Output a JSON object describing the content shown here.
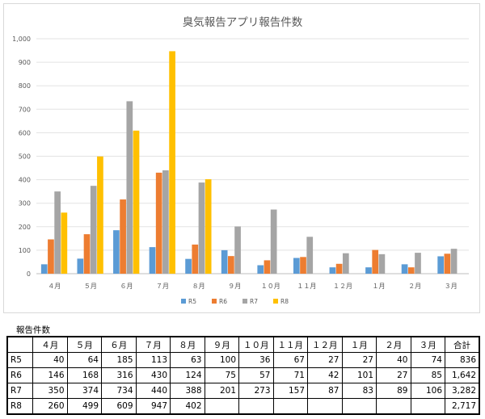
{
  "chart_data": {
    "type": "bar",
    "title": "臭気報告アプリ報告件数",
    "categories": [
      "４月",
      "５月",
      "６月",
      "７月",
      "８月",
      "９月",
      "１０月",
      "１１月",
      "１２月",
      "１月",
      "２月",
      "３月"
    ],
    "series": [
      {
        "name": "R5",
        "color": "#5b9bd5",
        "values": [
          40,
          64,
          185,
          113,
          63,
          100,
          36,
          67,
          27,
          27,
          40,
          74
        ]
      },
      {
        "name": "R6",
        "color": "#ed7d31",
        "values": [
          146,
          168,
          316,
          430,
          124,
          75,
          57,
          71,
          42,
          101,
          27,
          85
        ]
      },
      {
        "name": "R7",
        "color": "#a5a5a5",
        "values": [
          350,
          374,
          734,
          440,
          388,
          201,
          273,
          157,
          87,
          83,
          89,
          106
        ]
      },
      {
        "name": "R8",
        "color": "#ffc000",
        "values": [
          260,
          499,
          609,
          947,
          402,
          null,
          null,
          null,
          null,
          null,
          null,
          null
        ]
      }
    ],
    "ylim": [
      0,
      1000
    ],
    "yticks": [
      "0",
      "100",
      "200",
      "300",
      "400",
      "500",
      "600",
      "700",
      "800",
      "900",
      "1,000"
    ],
    "grid": true,
    "legend_position": "bottom"
  },
  "table": {
    "caption": "報告件数",
    "headers": [
      "",
      "４月",
      "５月",
      "６月",
      "７月",
      "８月",
      "９月",
      "１０月",
      "１１月",
      "１２月",
      "１月",
      "２月",
      "３月",
      "合計"
    ],
    "rows": [
      {
        "label": "R5",
        "cells": [
          "40",
          "64",
          "185",
          "113",
          "63",
          "100",
          "36",
          "67",
          "27",
          "27",
          "40",
          "74",
          "836"
        ]
      },
      {
        "label": "R6",
        "cells": [
          "146",
          "168",
          "316",
          "430",
          "124",
          "75",
          "57",
          "71",
          "42",
          "101",
          "27",
          "85",
          "1,642"
        ]
      },
      {
        "label": "R7",
        "cells": [
          "350",
          "374",
          "734",
          "440",
          "388",
          "201",
          "273",
          "157",
          "87",
          "83",
          "89",
          "106",
          "3,282"
        ]
      },
      {
        "label": "R8",
        "cells": [
          "260",
          "499",
          "609",
          "947",
          "402",
          "",
          "",
          "",
          "",
          "",
          "",
          "",
          "2,717"
        ]
      }
    ]
  }
}
